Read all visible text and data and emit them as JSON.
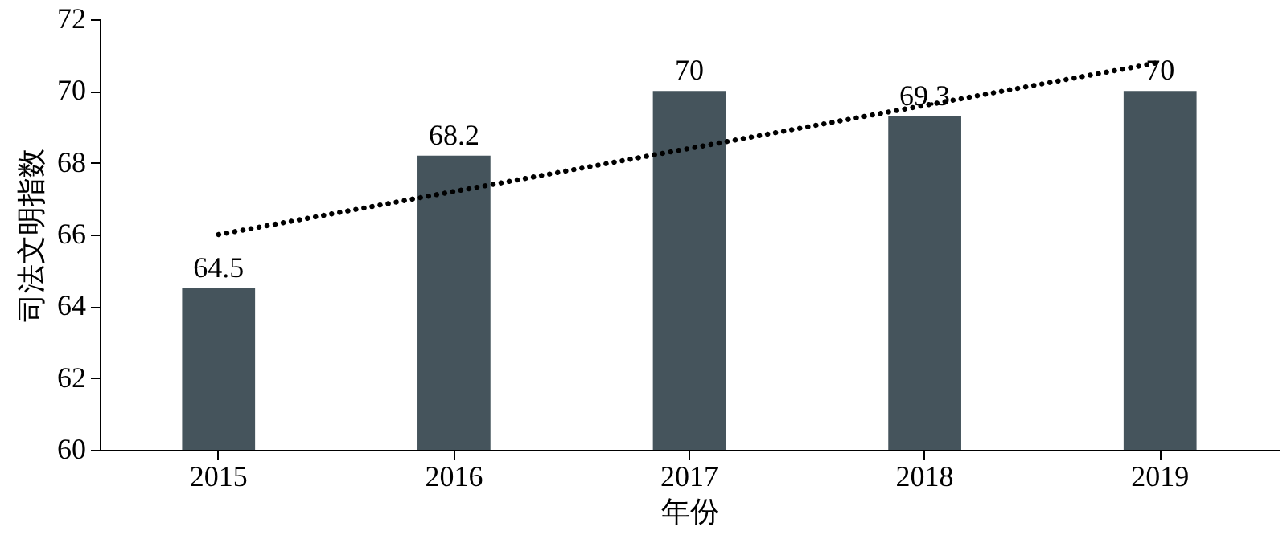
{
  "chart_data": {
    "type": "bar",
    "xlabel": "年份",
    "ylabel": "司法文明指数",
    "categories": [
      "2015",
      "2016",
      "2017",
      "2018",
      "2019"
    ],
    "series": [
      {
        "color": "#45545c",
        "values": [
          64.5,
          68.2,
          70,
          69.3,
          70
        ],
        "value_labels": [
          "64.5",
          "68.2",
          "70",
          "69.3",
          "70"
        ]
      },
      {
        "type": "line",
        "color": "#000000",
        "values": [
          66.0,
          67.2,
          68.4,
          69.6,
          70.8
        ],
        "line_style": "dotted"
      }
    ],
    "ylim": [
      60,
      72
    ],
    "yticks": [
      60,
      62,
      64,
      66,
      68,
      70,
      72
    ],
    "grid": false
  }
}
